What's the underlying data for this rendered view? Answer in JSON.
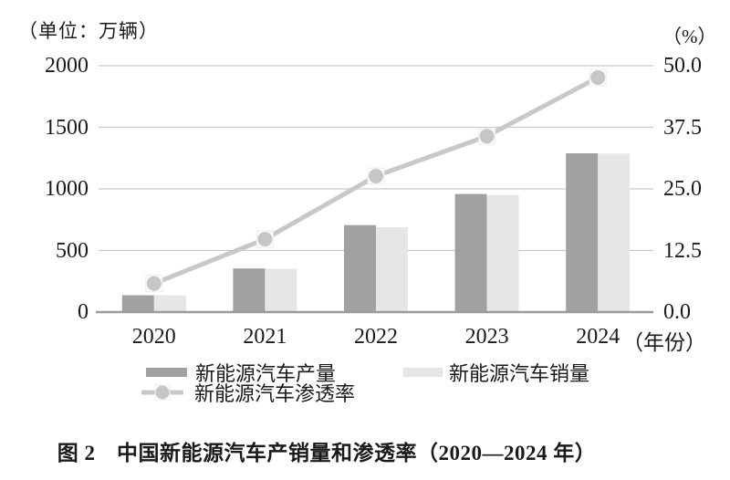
{
  "chart_data": {
    "type": "combo_bar_line",
    "title": "图 2　中国新能源汽车产销量和渗透率（2020—2024 年）",
    "categories": [
      "2020",
      "2021",
      "2022",
      "2023",
      "2024"
    ],
    "series": [
      {
        "name": "新能源汽车产量",
        "type": "bar",
        "axis": "left",
        "color": "#a1a1a1",
        "values": [
          136.6,
          354.5,
          705.8,
          958.7,
          1288.8
        ]
      },
      {
        "name": "新能源汽车销量",
        "type": "bar",
        "axis": "left",
        "color": "#e6e6e6",
        "values": [
          136.7,
          352.1,
          688.7,
          949.5,
          1286.6
        ]
      },
      {
        "name": "新能源汽车渗透率",
        "type": "line",
        "axis": "right",
        "color": "#c8c8c8",
        "values": [
          5.8,
          14.8,
          27.6,
          35.7,
          47.6
        ]
      }
    ],
    "left_axis": {
      "unit_label": "（单位：万辆）",
      "range": [
        0,
        2000
      ],
      "ticks": [
        0,
        500,
        1000,
        1500,
        2000
      ],
      "tick_labels": [
        "0",
        "500",
        "1000",
        "1500",
        "2000"
      ]
    },
    "right_axis": {
      "unit_label": "（%）",
      "range": [
        0,
        50
      ],
      "ticks": [
        0,
        12.5,
        25,
        37.5,
        50
      ],
      "tick_labels": [
        "0.0",
        "12.5",
        "25.0",
        "37.5",
        "50.0"
      ]
    },
    "x_axis": {
      "suffix_label": "（年份）"
    },
    "legend_position": "bottom",
    "grid": true,
    "colors": {
      "gridline": "#c9c9c9",
      "axis_line": "#9b9b9b",
      "text": "#1a1a1a",
      "marker_fill": "#c6c6c6",
      "marker_halo": "#fcfcfc",
      "marker_halo_edge": "#ececec"
    }
  }
}
